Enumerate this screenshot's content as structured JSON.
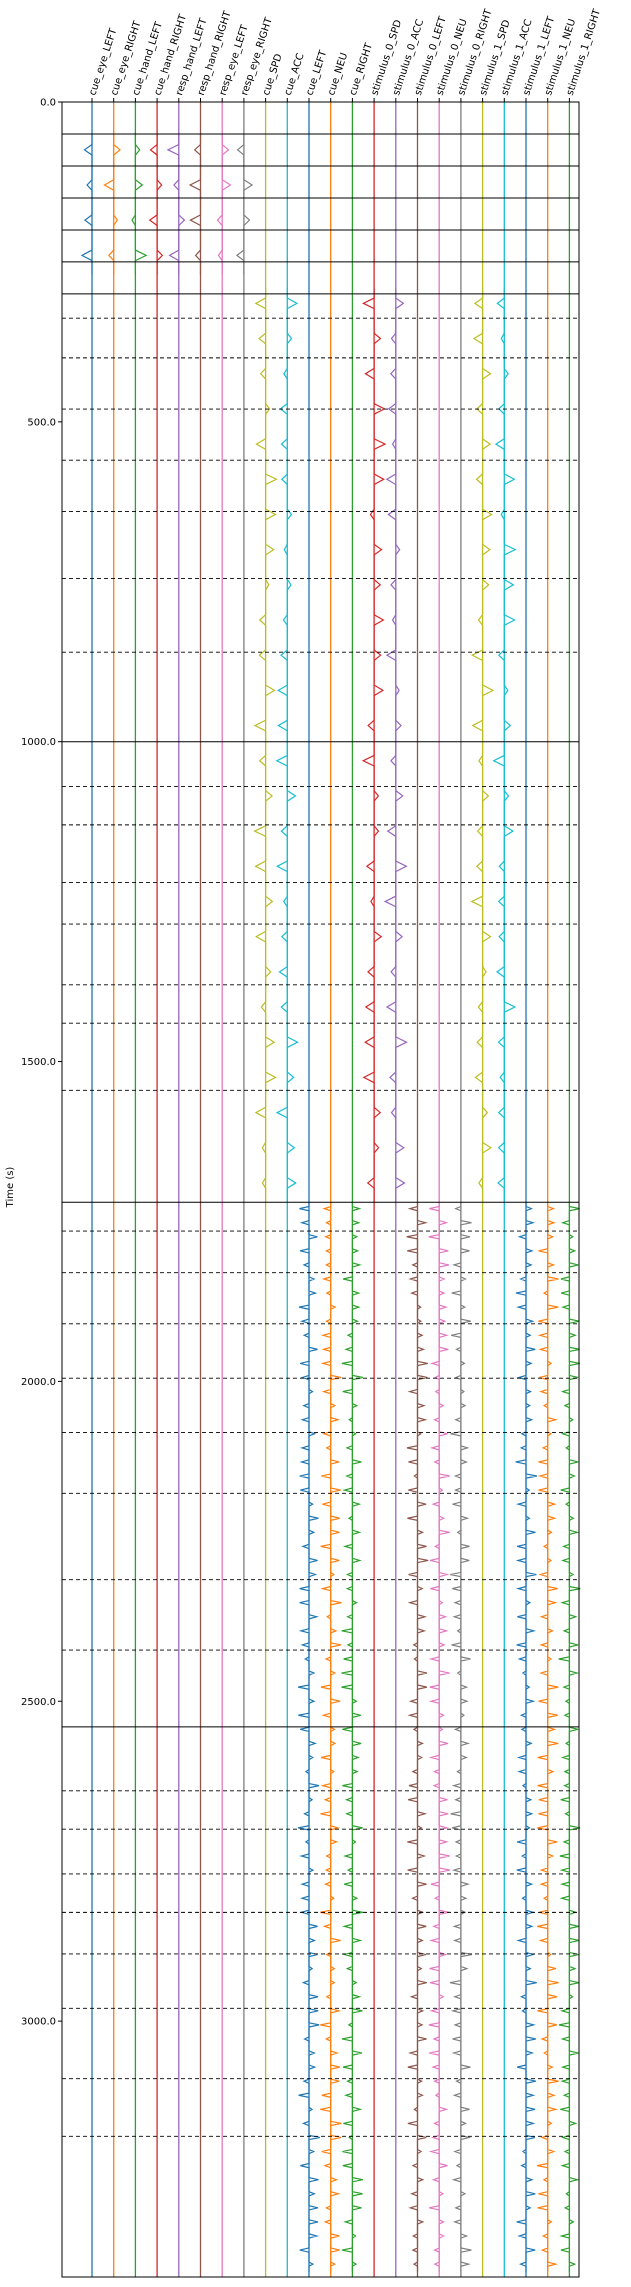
{
  "chart_data": {
    "type": "line",
    "title": "",
    "xlabel": "",
    "ylabel": "Time (s)",
    "ylim": [
      0,
      3400
    ],
    "y_inverted": true,
    "grid": false,
    "y_ticks": [
      0,
      500,
      1000,
      1500,
      2000,
      2500,
      3000
    ],
    "y_tick_labels": [
      "0.0",
      "500.0",
      "1000.0",
      "1500.0",
      "2000.0",
      "2500.0",
      "3000.0"
    ],
    "series": [
      {
        "name": "cue_eye_LEFT",
        "color": "#1f77b4"
      },
      {
        "name": "cue_eye_RIGHT",
        "color": "#ff7f0e"
      },
      {
        "name": "cue_hand_LEFT",
        "color": "#2ca02c"
      },
      {
        "name": "cue_hand_RIGHT",
        "color": "#d62728"
      },
      {
        "name": "resp_hand_LEFT",
        "color": "#9467bd"
      },
      {
        "name": "resp_hand_RIGHT",
        "color": "#8c564b"
      },
      {
        "name": "resp_eye_LEFT",
        "color": "#e377c2"
      },
      {
        "name": "resp_eye_RIGHT",
        "color": "#7f7f7f"
      },
      {
        "name": "cue_SPD",
        "color": "#bcbd22"
      },
      {
        "name": "cue_ACC",
        "color": "#17becf"
      },
      {
        "name": "cue_LEFT",
        "color": "#1f77b4"
      },
      {
        "name": "cue_NEU",
        "color": "#ff7f0e"
      },
      {
        "name": "cue_RIGHT",
        "color": "#2ca02c"
      },
      {
        "name": "stimulus_0_SPD",
        "color": "#d62728"
      },
      {
        "name": "stimulus_0_ACC",
        "color": "#9467bd"
      },
      {
        "name": "stimulus_0_LEFT",
        "color": "#8c564b"
      },
      {
        "name": "stimulus_0_NEU",
        "color": "#e377c2"
      },
      {
        "name": "stimulus_0_RIGHT",
        "color": "#7f7f7f"
      },
      {
        "name": "stimulus_1_SPD",
        "color": "#bcbd22"
      },
      {
        "name": "stimulus_1_ACC",
        "color": "#17becf"
      },
      {
        "name": "stimulus_1_LEFT",
        "color": "#1f77b4"
      },
      {
        "name": "stimulus_1_NEU",
        "color": "#ff7f0e"
      },
      {
        "name": "stimulus_1_RIGHT",
        "color": "#2ca02c"
      }
    ],
    "active_spans": [
      {
        "from": 50,
        "to": 300,
        "channels": [
          0,
          1,
          2,
          3,
          4,
          5,
          6,
          7
        ]
      },
      {
        "from": 290,
        "to": 1720,
        "channels": [
          8,
          9,
          13,
          14,
          18,
          19
        ]
      },
      {
        "from": 1720,
        "to": 3400,
        "channels": [
          10,
          11,
          12,
          15,
          16,
          17,
          20,
          21,
          22
        ]
      }
    ],
    "run_boundaries": [
      0,
      50,
      100,
      150,
      200,
      250,
      300,
      1000,
      1720,
      2540
    ],
    "block_boundaries": [
      338,
      400,
      480,
      560,
      640,
      745,
      860,
      1070,
      1130,
      1220,
      1285,
      1380,
      1440,
      1545,
      1765,
      1830,
      1910,
      1995,
      2080,
      2175,
      2310,
      2420,
      2640,
      2700,
      2770,
      2830,
      2895,
      2980,
      3090,
      3180
    ]
  }
}
